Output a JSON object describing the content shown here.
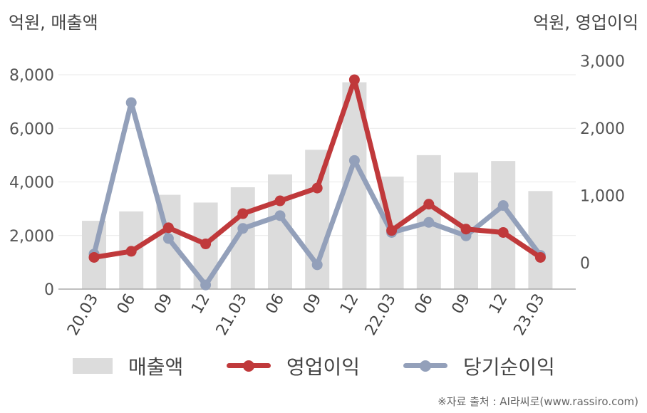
{
  "units": {
    "left": "억원, 매출액",
    "right": "억원, 영업이익"
  },
  "source": "※자료 출처 : AI라씨로(www.rassiro.com)",
  "legend": {
    "bar": "매출액",
    "op": "영업이익",
    "net": "당기순이익"
  },
  "colors": {
    "bar": "#dcdcdc",
    "op": "#c0393b",
    "net": "#93a0ba",
    "grid": "#e8e8e8",
    "axis": "#aaaaaa"
  },
  "chart_data": {
    "type": "bar+line",
    "categories": [
      "20.03",
      "06",
      "09",
      "12",
      "21.03",
      "06",
      "09",
      "12",
      "22.03",
      "06",
      "09",
      "12",
      "23.03"
    ],
    "series": [
      {
        "name": "매출액",
        "type": "bar",
        "axis": "left",
        "values": [
          2550,
          2900,
          3520,
          3230,
          3800,
          4280,
          5200,
          7720,
          4200,
          5000,
          4350,
          4780,
          3660
        ]
      },
      {
        "name": "영업이익",
        "type": "line",
        "axis": "right",
        "values": [
          80,
          170,
          520,
          280,
          730,
          920,
          1110,
          2720,
          480,
          870,
          500,
          450,
          80
        ]
      },
      {
        "name": "당기순이익",
        "type": "line",
        "axis": "right",
        "values": [
          130,
          2380,
          360,
          -330,
          510,
          700,
          -30,
          1520,
          450,
          600,
          400,
          850,
          110
        ]
      }
    ],
    "left_axis": {
      "ticks": [
        0,
        2000,
        4000,
        6000,
        8000
      ],
      "tick_labels": [
        "0",
        "2,000",
        "4,000",
        "6,000",
        "8,000"
      ],
      "ylim": [
        0,
        8000
      ]
    },
    "right_axis": {
      "ticks": [
        0,
        1000,
        2000,
        3000
      ],
      "tick_labels": [
        "0",
        "1,000",
        "2,000",
        "3,000"
      ],
      "ylim": [
        -400,
        3200
      ]
    },
    "grid": true,
    "legend_position": "bottom"
  }
}
